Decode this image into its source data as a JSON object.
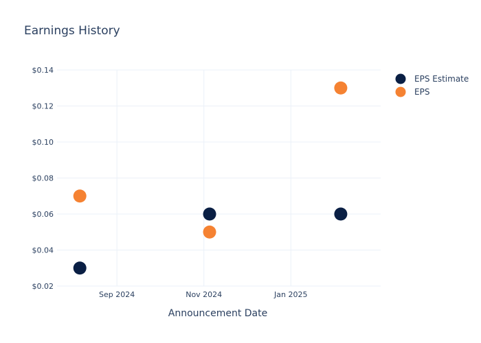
{
  "chart_data": {
    "type": "scatter",
    "title": "Earnings History",
    "xlabel": "Announcement Date",
    "ylabel": "",
    "x_type": "date",
    "xlim": [
      "2024-07-21",
      "2025-03-05"
    ],
    "ylim": [
      0.02,
      0.14
    ],
    "x_ticks": [
      {
        "value": "2024-09-01",
        "label": "Sep 2024"
      },
      {
        "value": "2024-11-01",
        "label": "Nov 2024"
      },
      {
        "value": "2025-01-01",
        "label": "Jan 2025"
      }
    ],
    "y_ticks": [
      {
        "value": 0.02,
        "label": "$0.02"
      },
      {
        "value": 0.04,
        "label": "$0.04"
      },
      {
        "value": 0.06,
        "label": "$0.06"
      },
      {
        "value": 0.08,
        "label": "$0.08"
      },
      {
        "value": 0.1,
        "label": "$0.10"
      },
      {
        "value": 0.12,
        "label": "$0.12"
      },
      {
        "value": 0.14,
        "label": "$0.14"
      }
    ],
    "grid": true,
    "legend_position": "top-right",
    "series": [
      {
        "name": "EPS Estimate",
        "color": "#0a1f44",
        "points": [
          {
            "x": "2024-08-06",
            "y": 0.03
          },
          {
            "x": "2024-11-05",
            "y": 0.06
          },
          {
            "x": "2025-02-05",
            "y": 0.06
          }
        ]
      },
      {
        "name": "EPS",
        "color": "#f58232",
        "points": [
          {
            "x": "2024-08-06",
            "y": 0.07
          },
          {
            "x": "2024-11-05",
            "y": 0.05
          },
          {
            "x": "2025-02-05",
            "y": 0.13
          }
        ]
      }
    ]
  }
}
